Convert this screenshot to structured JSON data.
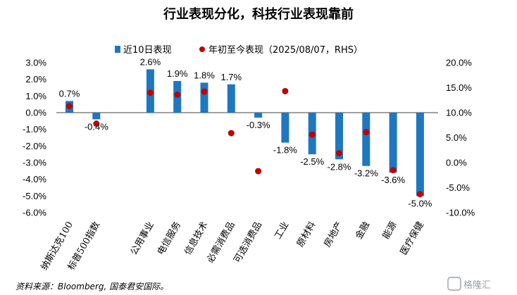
{
  "chart_data": {
    "type": "bar",
    "title": "行业表现分化，科技行业表现靠前",
    "categories": [
      "纳斯达克100",
      "标普500指数",
      "",
      "公用事业",
      "电信服务",
      "信息技术",
      "必需消费品",
      "可选消费品",
      "工业",
      "原材料",
      "房地产",
      "金融",
      "能源",
      "医疗保健"
    ],
    "series": [
      {
        "name": "近10日表现",
        "type": "bar",
        "axis": "left",
        "color": "#1f77c0",
        "values": [
          0.7,
          -0.4,
          null,
          2.6,
          1.9,
          1.8,
          1.7,
          -0.3,
          -1.8,
          -2.5,
          -2.8,
          -3.2,
          -3.6,
          -5.0
        ],
        "labels": [
          "0.7%",
          "-0.4%",
          "",
          "2.6%",
          "1.9%",
          "1.8%",
          "1.7%",
          "-0.3%",
          "-1.8%",
          "-2.5%",
          "-2.8%",
          "-3.2%",
          "-3.6%",
          "-5.0%"
        ]
      },
      {
        "name": "年初至今表现（2025/08/07，RHS）",
        "type": "scatter",
        "axis": "right",
        "color": "#c00000",
        "values": [
          11.3,
          7.8,
          null,
          14.0,
          13.6,
          14.2,
          5.9,
          -1.7,
          14.3,
          5.6,
          1.9,
          6.1,
          -1.5,
          -6.3
        ]
      }
    ],
    "y_left": {
      "ylim": [
        -6.0,
        3.0
      ],
      "ticks": [
        3.0,
        2.0,
        1.0,
        0.0,
        -1.0,
        -2.0,
        -3.0,
        -4.0,
        -5.0,
        -6.0
      ],
      "tick_labels": [
        "3.0%",
        "2.0%",
        "1.0%",
        "0.0%",
        "-1.0%",
        "-2.0%",
        "-3.0%",
        "-4.0%",
        "-5.0%",
        "-6.0%"
      ]
    },
    "y_right": {
      "ylim": [
        -10.0,
        20.0
      ],
      "ticks": [
        20.0,
        15.0,
        10.0,
        5.0,
        0.0,
        -5.0,
        -10.0
      ],
      "tick_labels": [
        "20.0%",
        "15.0%",
        "10.0%",
        "5.0%",
        "0.0%",
        "-5.0%",
        "-10.0%"
      ]
    },
    "legend_position": "top",
    "grid": false,
    "source": "资料来源：Bloomberg, 国泰君安国际。",
    "watermark": "格隆汇"
  }
}
